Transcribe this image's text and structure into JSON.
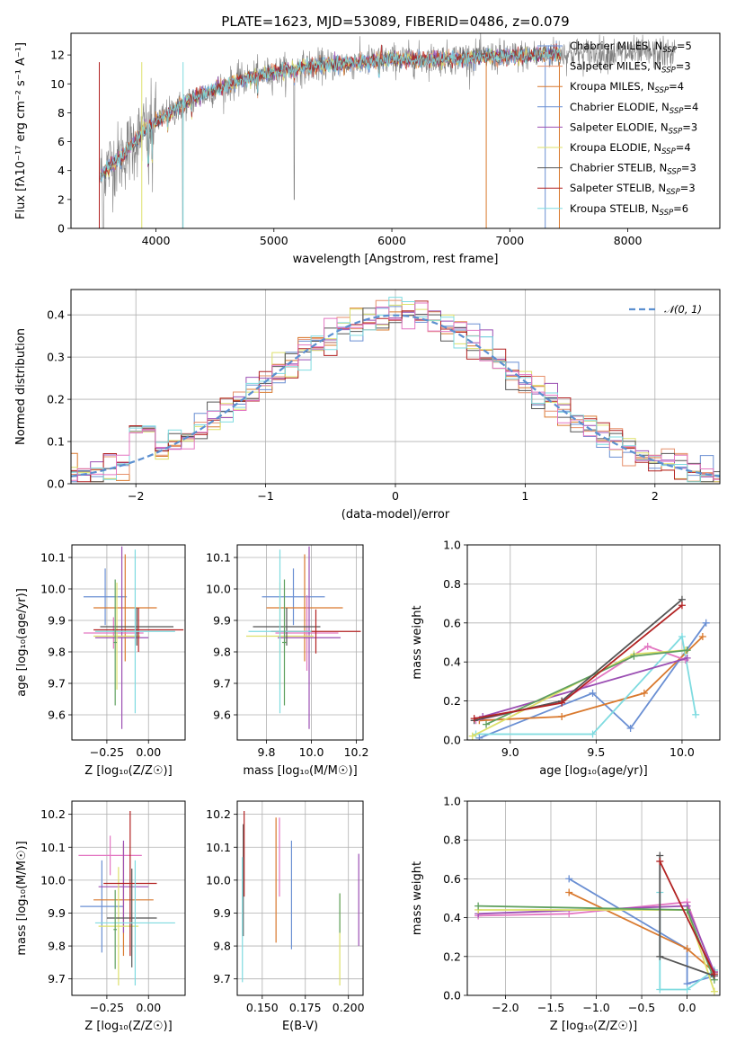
{
  "chart_data": [
    {
      "id": "spectrum",
      "type": "line",
      "title": "PLATE=1623, MJD=53089, FIBERID=0486, z=0.079",
      "xlabel": "wavelength [Angstrom, rest frame]",
      "ylabel": "Flux [fλ10⁻¹⁷ erg cm⁻² s⁻¹ A⁻¹]",
      "xlim": [
        3280,
        8780
      ],
      "ylim": [
        0,
        13.5
      ],
      "xticks": [
        4000,
        5000,
        6000,
        7000,
        8000
      ],
      "yticks": [
        0,
        2,
        4,
        6,
        8,
        10,
        12
      ],
      "grid": false,
      "legend_position": "right",
      "data_trend": {
        "x": [
          3530,
          3600,
          3700,
          3800,
          3900,
          4000,
          4100,
          4300,
          4500,
          4700,
          5000,
          5300,
          5600,
          6000,
          6300,
          6600,
          7000,
          7200,
          7400
        ],
        "y": [
          3.6,
          4.3,
          4.9,
          5.8,
          6.8,
          7.4,
          7.9,
          8.9,
          9.6,
          10.2,
          10.8,
          11.2,
          11.4,
          11.7,
          11.7,
          11.8,
          11.9,
          12.0,
          12.1
        ]
      },
      "model_range": [
        3530,
        7430
      ],
      "data_range": [
        3530,
        8400
      ],
      "series": [
        {
          "name": "Chabrier MILES, N",
          "nssp": "5",
          "color": "#6a8fd3"
        },
        {
          "name": "Salpeter MILES, N",
          "nssp": "3",
          "color": "#e68f6a"
        },
        {
          "name": "Kroupa MILES, N",
          "nssp": "4",
          "color": "#d9792e"
        },
        {
          "name": "Chabrier ELODIE, N",
          "nssp": "4",
          "color": "#6a8fd3"
        },
        {
          "name": "Salpeter ELODIE, N",
          "nssp": "3",
          "color": "#9b4fb3"
        },
        {
          "name": "Kroupa ELODIE, N",
          "nssp": "4",
          "color": "#dde06a"
        },
        {
          "name": "Chabrier STELIB, N",
          "nssp": "3",
          "color": "#555555"
        },
        {
          "name": "Salpeter STELIB, N",
          "nssp": "3",
          "color": "#b22222"
        },
        {
          "name": "Kroupa STELIB, N",
          "nssp": "6",
          "color": "#7fdbe0"
        }
      ],
      "legend_sub": "SSP"
    },
    {
      "id": "residuals",
      "type": "line",
      "xlabel": "(data-model)/error",
      "ylabel": "Normed distribution",
      "xlim": [
        -2.5,
        2.5
      ],
      "ylim": [
        0,
        0.46
      ],
      "xticks": [
        -2,
        -1,
        0,
        1,
        2
      ],
      "yticks": [
        0.0,
        0.1,
        0.2,
        0.3,
        0.4
      ],
      "grid": true,
      "legend_position": "top-right",
      "gaussian_label": "𝒩(0, 1)",
      "bin_width": 0.1,
      "hist_colors": [
        "#6a8fd3",
        "#d9792e",
        "#e68f6a",
        "#9b4fb3",
        "#dde06a",
        "#555555",
        "#b22222",
        "#7fdbe0",
        "#e377c2"
      ]
    },
    {
      "id": "Z-age",
      "type": "scatter",
      "xlabel": "Z [log₁₀(Z/Z☉)]",
      "ylabel": "age  [log₁₀(age/yr)]",
      "xlim": [
        -0.46,
        0.22
      ],
      "ylim": [
        9.52,
        10.14
      ],
      "xticks": [
        -0.25,
        0.0
      ],
      "xticklabels": [
        "−0.25",
        "0.00"
      ],
      "yticks": [
        9.6,
        9.7,
        9.8,
        9.9,
        10.0,
        10.1
      ],
      "grid": true,
      "points": [
        {
          "x": -0.26,
          "y": 9.975,
          "xerr": 0.13,
          "yerr": 0.09,
          "color": "#6a8fd3"
        },
        {
          "x": -0.14,
          "y": 9.94,
          "xerr": 0.19,
          "yerr": 0.17,
          "color": "#d9792e"
        },
        {
          "x": -0.21,
          "y": 9.86,
          "xerr": 0.18,
          "yerr": 0.05,
          "color": "#e377c2"
        },
        {
          "x": -0.16,
          "y": 9.845,
          "xerr": 0.16,
          "yerr": 0.29,
          "color": "#9b4fb3"
        },
        {
          "x": -0.19,
          "y": 9.85,
          "xerr": 0.14,
          "yerr": 0.17,
          "color": "#dde06a"
        },
        {
          "x": -0.07,
          "y": 9.88,
          "xerr": 0.22,
          "yerr": 0.06,
          "color": "#555555"
        },
        {
          "x": -0.06,
          "y": 9.87,
          "xerr": 0.27,
          "yerr": 0.07,
          "color": "#b22222"
        },
        {
          "x": -0.08,
          "y": 9.865,
          "xerr": 0.24,
          "yerr": 0.26,
          "color": "#7fdbe0"
        },
        {
          "x": -0.2,
          "y": 9.83,
          "xerr": 0.01,
          "yerr": 0.2,
          "color": "#5fa05f"
        }
      ]
    },
    {
      "id": "mass-age",
      "type": "scatter",
      "xlabel": "mass [log₁₀(M/M☉)]",
      "ylabel": "",
      "xlim": [
        9.67,
        10.23
      ],
      "ylim": [
        9.52,
        10.14
      ],
      "xticks": [
        9.8,
        10.0,
        10.2
      ],
      "xticklabels": [
        "9.8",
        "10.0",
        "10.2"
      ],
      "yticks": [
        9.6,
        9.7,
        9.8,
        9.9,
        10.0,
        10.1
      ],
      "grid": true,
      "points": [
        {
          "x": 9.92,
          "y": 9.975,
          "xerr": 0.14,
          "yerr": 0.09,
          "color": "#6a8fd3"
        },
        {
          "x": 9.97,
          "y": 9.94,
          "xerr": 0.17,
          "yerr": 0.17,
          "color": "#d9792e"
        },
        {
          "x": 9.98,
          "y": 9.86,
          "xerr": 0.14,
          "yerr": 0.12,
          "color": "#e377c2"
        },
        {
          "x": 9.99,
          "y": 9.845,
          "xerr": 0.14,
          "yerr": 0.29,
          "color": "#9b4fb3"
        },
        {
          "x": 9.86,
          "y": 9.85,
          "xerr": 0.15,
          "yerr": 0.17,
          "color": "#dde06a"
        },
        {
          "x": 9.89,
          "y": 9.88,
          "xerr": 0.15,
          "yerr": 0.06,
          "color": "#555555"
        },
        {
          "x": 10.02,
          "y": 9.865,
          "xerr": 0.2,
          "yerr": 0.07,
          "color": "#b22222"
        },
        {
          "x": 9.86,
          "y": 9.865,
          "xerr": 0.14,
          "yerr": 0.26,
          "color": "#7fdbe0"
        },
        {
          "x": 9.88,
          "y": 9.83,
          "xerr": 0.01,
          "yerr": 0.2,
          "color": "#5fa05f"
        }
      ]
    },
    {
      "id": "weight-age",
      "type": "line",
      "xlabel": "age  [log₁₀(age/yr)]",
      "ylabel": "mass weight",
      "xlim": [
        8.75,
        10.22
      ],
      "ylim": [
        0,
        1.0
      ],
      "xticks": [
        9.0,
        9.5,
        10.0
      ],
      "yticks": [
        0.0,
        0.2,
        0.4,
        0.6,
        0.8,
        1.0
      ],
      "grid": true,
      "series": [
        {
          "color": "#6a8fd3",
          "x": [
            8.82,
            9.48,
            9.7,
            10.14
          ],
          "y": [
            0.01,
            0.24,
            0.06,
            0.6
          ]
        },
        {
          "color": "#d9792e",
          "x": [
            8.82,
            9.3,
            9.78,
            10.12
          ],
          "y": [
            0.1,
            0.12,
            0.24,
            0.53
          ]
        },
        {
          "color": "#7fdbe0",
          "x": [
            8.8,
            9.48,
            10.0,
            10.08
          ],
          "y": [
            0.03,
            0.03,
            0.53,
            0.13
          ]
        },
        {
          "color": "#e377c2",
          "x": [
            8.8,
            9.3,
            9.8,
            10.02
          ],
          "y": [
            0.1,
            0.2,
            0.48,
            0.41
          ]
        },
        {
          "color": "#9b4fb3",
          "x": [
            8.84,
            10.03
          ],
          "y": [
            0.12,
            0.42
          ]
        },
        {
          "color": "#dde06a",
          "x": [
            8.78,
            9.72,
            10.02
          ],
          "y": [
            0.02,
            0.44,
            0.46
          ]
        },
        {
          "color": "#5fa05f",
          "x": [
            8.86,
            9.72,
            10.03
          ],
          "y": [
            0.08,
            0.43,
            0.46
          ]
        },
        {
          "color": "#555555",
          "x": [
            8.79,
            9.3,
            10.0
          ],
          "y": [
            0.1,
            0.2,
            0.72
          ]
        },
        {
          "color": "#b22222",
          "x": [
            8.79,
            9.3,
            10.0
          ],
          "y": [
            0.11,
            0.19,
            0.69
          ]
        }
      ]
    },
    {
      "id": "Z-mass",
      "type": "scatter",
      "xlabel": "Z [log₁₀(Z/Z☉)]",
      "ylabel": "mass [log₁₀(M/M☉)]",
      "xlim": [
        -0.46,
        0.22
      ],
      "ylim": [
        9.65,
        10.24
      ],
      "xticks": [
        -0.25,
        0.0
      ],
      "xticklabels": [
        "−0.25",
        "0.00"
      ],
      "yticks": [
        9.7,
        9.8,
        9.9,
        10.0,
        10.1,
        10.2
      ],
      "grid": true,
      "points": [
        {
          "x": -0.28,
          "y": 9.92,
          "xerr": 0.13,
          "yerr": 0.14,
          "color": "#6a8fd3"
        },
        {
          "x": -0.15,
          "y": 9.94,
          "xerr": 0.18,
          "yerr": 0.17,
          "color": "#d9792e"
        },
        {
          "x": -0.23,
          "y": 10.075,
          "xerr": 0.19,
          "yerr": 0.06,
          "color": "#e377c2"
        },
        {
          "x": -0.15,
          "y": 9.98,
          "xerr": 0.15,
          "yerr": 0.14,
          "color": "#9b4fb3"
        },
        {
          "x": -0.18,
          "y": 9.86,
          "xerr": 0.12,
          "yerr": 0.18,
          "color": "#dde06a"
        },
        {
          "x": -0.1,
          "y": 9.885,
          "xerr": 0.15,
          "yerr": 0.15,
          "color": "#555555"
        },
        {
          "x": -0.11,
          "y": 9.99,
          "xerr": 0.16,
          "yerr": 0.22,
          "color": "#b22222"
        },
        {
          "x": -0.08,
          "y": 9.87,
          "xerr": 0.24,
          "yerr": 0.19,
          "color": "#7fdbe0"
        },
        {
          "x": -0.2,
          "y": 9.85,
          "xerr": 0.01,
          "yerr": 0.12,
          "color": "#5fa05f"
        }
      ]
    },
    {
      "id": "ebv-mass",
      "type": "scatter",
      "xlabel": "E(B-V)",
      "ylabel": "",
      "xlim": [
        0.1355,
        0.2085
      ],
      "ylim": [
        9.65,
        10.24
      ],
      "xticks": [
        0.15,
        0.175,
        0.2
      ],
      "xticklabels": [
        "0.150",
        "0.175",
        "0.200"
      ],
      "yticks": [
        9.7,
        9.8,
        9.9,
        10.0,
        10.1,
        10.2
      ],
      "grid": true,
      "points": [
        {
          "x": 0.167,
          "y": 9.955,
          "yerr": 0.165,
          "color": "#6a8fd3"
        },
        {
          "x": 0.158,
          "y": 10.0,
          "yerr": 0.19,
          "color": "#d9792e"
        },
        {
          "x": 0.16,
          "y": 10.07,
          "yerr": 0.12,
          "color": "#e377c2"
        },
        {
          "x": 0.206,
          "y": 9.94,
          "yerr": 0.14,
          "color": "#9b4fb3"
        },
        {
          "x": 0.195,
          "y": 9.82,
          "yerr": 0.14,
          "color": "#dde06a"
        },
        {
          "x": 0.139,
          "y": 10.0,
          "yerr": 0.17,
          "color": "#555555"
        },
        {
          "x": 0.1395,
          "y": 10.08,
          "yerr": 0.13,
          "color": "#b22222"
        },
        {
          "x": 0.1385,
          "y": 9.88,
          "yerr": 0.19,
          "color": "#7fdbe0"
        },
        {
          "x": 0.195,
          "y": 9.9,
          "yerr": 0.06,
          "color": "#5fa05f"
        }
      ]
    },
    {
      "id": "weight-Z",
      "type": "line",
      "xlabel": "Z [log₁₀(Z/Z☉)]",
      "ylabel": "mass weight",
      "xlim": [
        -2.42,
        0.36
      ],
      "ylim": [
        0,
        1.0
      ],
      "xticks": [
        -2.0,
        -1.5,
        -1.0,
        -0.5,
        0.0
      ],
      "xticklabels": [
        "−2.0",
        "−1.5",
        "−1.0",
        "−0.5",
        "0.0"
      ],
      "yticks": [
        0.0,
        0.2,
        0.4,
        0.6,
        0.8,
        1.0
      ],
      "grid": true,
      "series": [
        {
          "color": "#6a8fd3",
          "x": [
            -1.3,
            0.0,
            0.0,
            0.3
          ],
          "y": [
            0.6,
            0.24,
            0.06,
            0.1
          ]
        },
        {
          "color": "#d9792e",
          "x": [
            -1.3,
            0.0,
            0.3
          ],
          "y": [
            0.53,
            0.24,
            0.12
          ]
        },
        {
          "color": "#7fdbe0",
          "x": [
            -0.3,
            -0.3,
            0.0,
            0.3
          ],
          "y": [
            0.53,
            0.03,
            0.03,
            0.13
          ]
        },
        {
          "color": "#e377c2",
          "x": [
            -2.3,
            -1.3,
            0.0,
            0.3
          ],
          "y": [
            0.41,
            0.42,
            0.48,
            0.1
          ]
        },
        {
          "color": "#9b4fb3",
          "x": [
            -2.3,
            0.0,
            0.3
          ],
          "y": [
            0.42,
            0.46,
            0.12
          ]
        },
        {
          "color": "#dde06a",
          "x": [
            -2.3,
            0.0,
            0.3
          ],
          "y": [
            0.44,
            0.44,
            0.02
          ]
        },
        {
          "color": "#5fa05f",
          "x": [
            -2.3,
            0.0,
            0.3
          ],
          "y": [
            0.46,
            0.44,
            0.08
          ]
        },
        {
          "color": "#555555",
          "x": [
            -0.3,
            -0.3,
            0.3
          ],
          "y": [
            0.72,
            0.2,
            0.1
          ]
        },
        {
          "color": "#b22222",
          "x": [
            -0.3,
            0.3
          ],
          "y": [
            0.69,
            0.11
          ]
        }
      ]
    }
  ]
}
